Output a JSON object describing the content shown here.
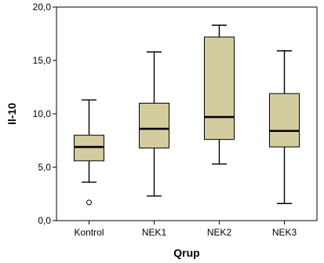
{
  "chart_data": {
    "type": "boxplot",
    "xlabel": "Qrup",
    "ylabel": "Il-10",
    "ylim": [
      0,
      20
    ],
    "yticks": [
      0,
      5,
      10,
      15,
      20
    ],
    "ytick_labels": [
      "0,0",
      "5,0",
      "10,0",
      "15,0",
      "20,0"
    ],
    "grid": false,
    "legend": "none",
    "box_color": "#d3cc9e",
    "categories": [
      "Kontrol",
      "NEK1",
      "NEK2",
      "NEK3"
    ],
    "boxes": [
      {
        "category": "Kontrol",
        "whisker_low": 3.6,
        "q1": 5.6,
        "median": 6.9,
        "q3": 8.0,
        "whisker_high": 11.3,
        "outliers": [
          1.7
        ]
      },
      {
        "category": "NEK1",
        "whisker_low": 2.3,
        "q1": 6.8,
        "median": 8.6,
        "q3": 11.0,
        "whisker_high": 15.8,
        "outliers": []
      },
      {
        "category": "NEK2",
        "whisker_low": 5.3,
        "q1": 7.6,
        "median": 9.7,
        "q3": 17.2,
        "whisker_high": 18.3,
        "outliers": []
      },
      {
        "category": "NEK3",
        "whisker_low": 1.6,
        "q1": 6.9,
        "median": 8.4,
        "q3": 11.9,
        "whisker_high": 15.9,
        "outliers": []
      }
    ]
  }
}
